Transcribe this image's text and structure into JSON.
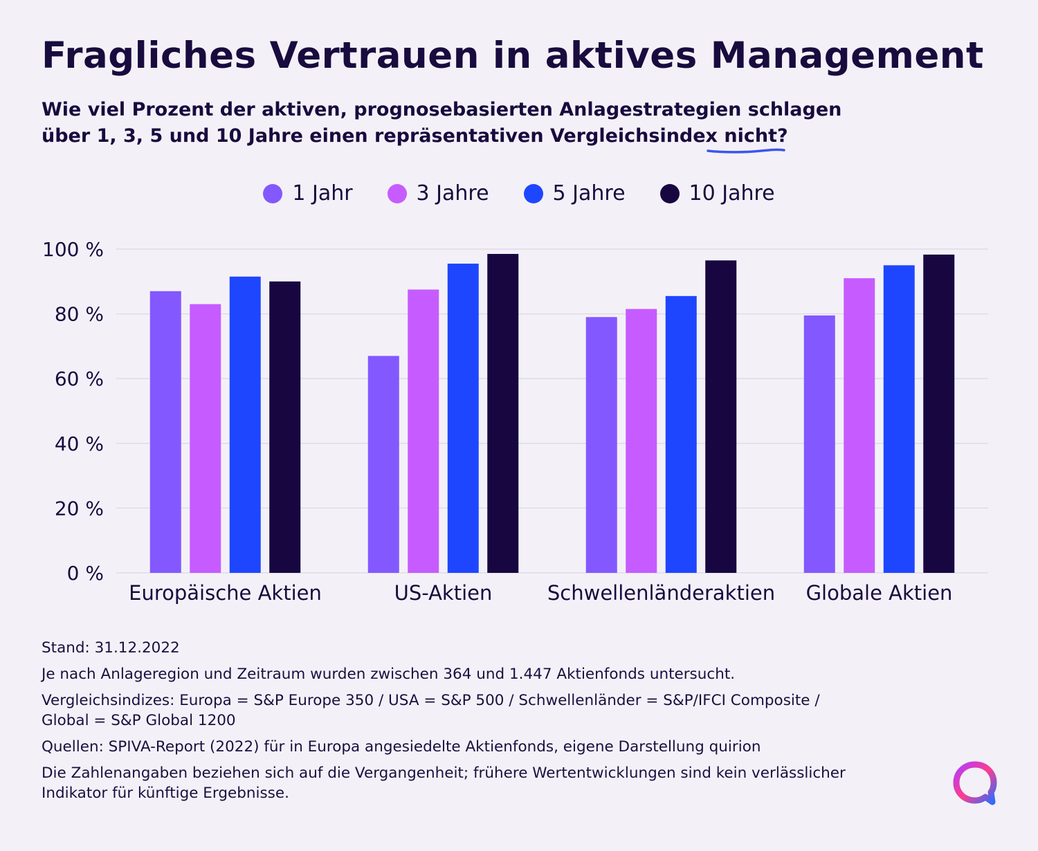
{
  "title": "Fragliches Vertrauen in aktives Management",
  "subtitle": {
    "line1": "Wie viel Prozent der aktiven, prognosebasierten Anlagestrategien schlagen",
    "line2_pre": "über 1, 3, 5 und 10 Jahre einen repräsentativen Vergleichsindex ",
    "line2_emph": "nicht",
    "line2_post": "?"
  },
  "colors": {
    "s1": "#8358ff",
    "s2": "#c65cff",
    "s3": "#1f46ff",
    "s4": "#170640",
    "grid": "#dcd8e6",
    "background": "#f3f1f7",
    "underline": "#3b55f0"
  },
  "chart_data": {
    "type": "bar",
    "categories": [
      "Europäische Aktien",
      "US-Aktien",
      "Schwellenländeraktien",
      "Globale Aktien"
    ],
    "series": [
      {
        "name": "1 Jahr",
        "values": [
          87,
          67,
          79,
          79.5
        ]
      },
      {
        "name": "3 Jahre",
        "values": [
          83,
          87.5,
          81.5,
          91
        ]
      },
      {
        "name": "5 Jahre",
        "values": [
          91.5,
          95.5,
          85.5,
          95
        ]
      },
      {
        "name": "10 Jahre",
        "values": [
          90,
          98.5,
          96.5,
          98.3
        ]
      }
    ],
    "y_ticks": [
      "0 %",
      "20 %",
      "40 %",
      "60 %",
      "80 %",
      "100 %"
    ],
    "ylim": [
      0,
      100
    ],
    "grid": true,
    "legend": "top-center"
  },
  "notes": {
    "stand": "Stand: 31.12.2022",
    "sample": "Je nach Anlageregion und Zeitraum wurden zwischen 364 und 1.447 Aktienfonds untersucht.",
    "indices_line1": "Vergleichsindizes: Europa = S&P Europe 350 / USA = S&P 500 / Schwellenländer = S&P/IFCI Composite /",
    "indices_line2": "Global = S&P Global 1200",
    "sources": "Quellen: SPIVA-Report (2022) für in Europa angesiedelte Aktienfonds, eigene Darstellung quirion",
    "disclaimer_line1": "Die Zahlenangaben beziehen sich auf die Vergangenheit; frühere Wertentwicklungen sind kein verlässlicher",
    "disclaimer_line2": "Indikator für künftige Ergebnisse."
  },
  "logo": {
    "icon": "quirion-logo-icon"
  }
}
